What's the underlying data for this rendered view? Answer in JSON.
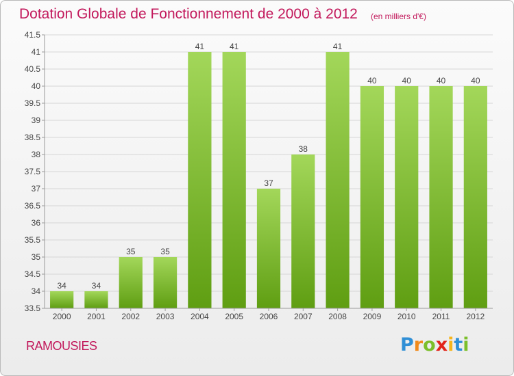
{
  "header": {
    "title": "Dotation Globale de Fonctionnement de 2000 à 2012",
    "subtitle": "(en milliers d'€)"
  },
  "footer": {
    "place": "RAMOUSIES",
    "logo_letters": [
      {
        "ch": "P",
        "color": "#2f8fd6"
      },
      {
        "ch": "r",
        "color": "#f08a1c"
      },
      {
        "ch": "o",
        "color": "#7bbf2a"
      },
      {
        "ch": "x",
        "color": "#e2231a"
      },
      {
        "ch": "i",
        "color": "#f6b51b"
      },
      {
        "ch": "t",
        "color": "#2f8fd6"
      },
      {
        "ch": "i",
        "color": "#7bbf2a"
      }
    ]
  },
  "colors": {
    "bar_light": "#a3d75a",
    "bar_dark": "#5f9e12",
    "grid": "#d6d6d6",
    "axis": "#999999",
    "accent": "#c2185b"
  },
  "chart_data": {
    "type": "bar",
    "title": "Dotation Globale de Fonctionnement de 2000 à 2012",
    "subtitle": "(en milliers d'€)",
    "categories": [
      "2000",
      "2001",
      "2002",
      "2003",
      "2004",
      "2005",
      "2006",
      "2007",
      "2008",
      "2009",
      "2010",
      "2011",
      "2012"
    ],
    "values": [
      34,
      34,
      35,
      35,
      41,
      41,
      37,
      38,
      41,
      40,
      40,
      40,
      40
    ],
    "ylim": [
      33.5,
      41.5
    ],
    "yticks": [
      "33.5",
      "34",
      "34.5",
      "35",
      "35.5",
      "36",
      "36.5",
      "37",
      "37.5",
      "38",
      "38.5",
      "39",
      "39.5",
      "40",
      "40.5",
      "41",
      "41.5"
    ],
    "grid": true,
    "legend": "none"
  }
}
